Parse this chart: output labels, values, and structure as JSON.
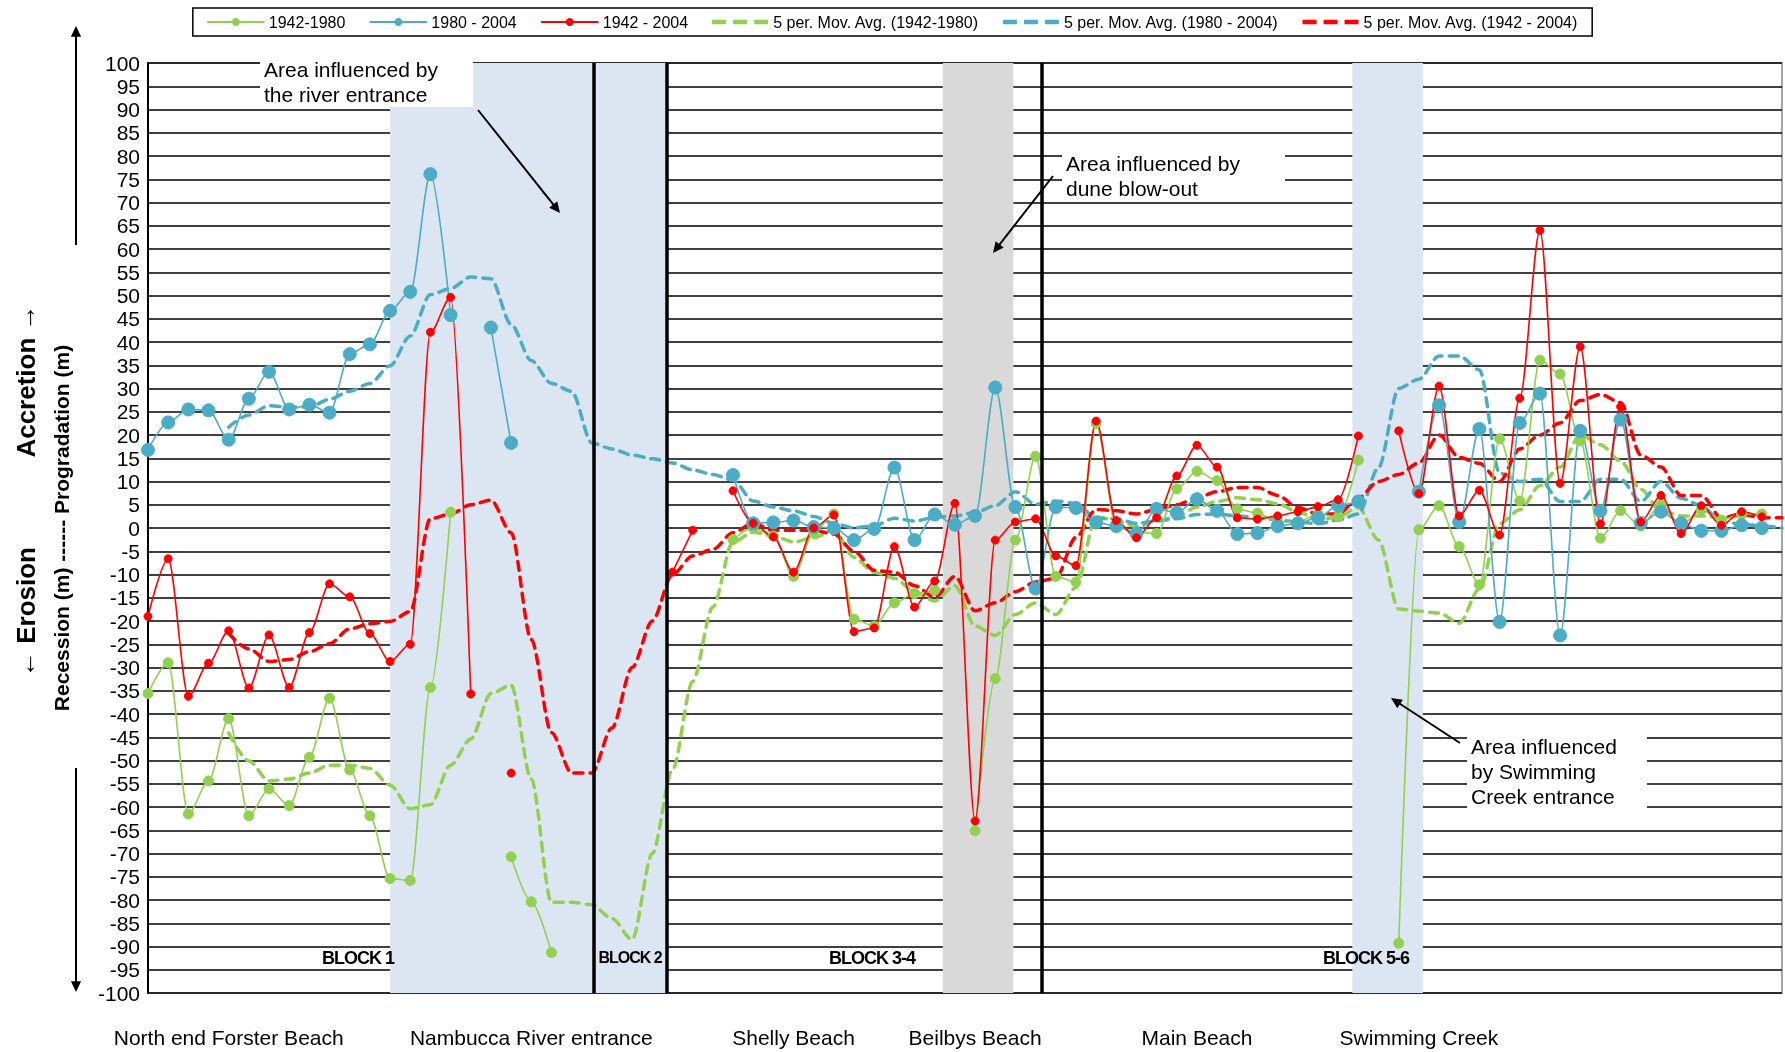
{
  "chart_data": {
    "type": "line",
    "ylabel": "Recession (m) ------ Progradation (m)",
    "categories": [
      null,
      null,
      null,
      null,
      "North end Forster Beach",
      null,
      null,
      null,
      null,
      null,
      null,
      null,
      null,
      null,
      null,
      null,
      null,
      null,
      null,
      "Nambucca River entrance",
      null,
      null,
      null,
      null,
      null,
      null,
      null,
      null,
      null,
      null,
      null,
      null,
      "Shelly Beach",
      null,
      null,
      null,
      null,
      null,
      null,
      null,
      null,
      "Beilbys Beach",
      null,
      null,
      null,
      null,
      null,
      null,
      null,
      null,
      null,
      null,
      "Main Beach",
      null,
      null,
      null,
      null,
      null,
      null,
      null,
      null,
      null,
      null,
      "Swimming Creek",
      null,
      null,
      null,
      null,
      null,
      null,
      null,
      null,
      null,
      null,
      null,
      null,
      null,
      null,
      null,
      null,
      null,
      null
    ],
    "ylim": [
      -100,
      100
    ],
    "yticks": [
      -100,
      -95,
      -90,
      -85,
      -80,
      -75,
      -70,
      -65,
      -60,
      -55,
      -50,
      -45,
      -40,
      -35,
      -30,
      -25,
      -20,
      -15,
      -10,
      -5,
      0,
      5,
      10,
      15,
      20,
      25,
      30,
      35,
      40,
      45,
      50,
      55,
      60,
      65,
      70,
      75,
      80,
      85,
      90,
      95,
      100
    ],
    "grid": "y",
    "legend": "top",
    "series": [
      {
        "name": "1942-1980",
        "color": "#92d050",
        "marker": "circle",
        "line_style": "solid",
        "values": [
          -35.6,
          -29,
          -61.5,
          -54.4,
          -41,
          -61.9,
          -56.1,
          -59.7,
          -49.3,
          -36.6,
          -52,
          -61.9,
          -75.4,
          -75.8,
          -34.3,
          3.4,
          null,
          null,
          -70.7,
          -80.4,
          -91.3,
          null,
          null,
          null,
          null,
          null,
          null,
          null,
          null,
          -2.5,
          0,
          -1.7,
          -10.4,
          -1,
          3,
          -19.6,
          -21.1,
          -16.1,
          -14.1,
          -13.4,
          null,
          -65.1,
          -32.4,
          -2.6,
          15.4,
          -10.4,
          -11.6,
          22.5,
          0.4,
          -0.9,
          -1.2,
          8.4,
          12.2,
          10.2,
          4.1,
          3.2,
          1.3,
          1.3,
          3,
          2.4,
          14.6,
          null,
          -89.3,
          -0.4,
          4.8,
          -4,
          -12.2,
          19.2,
          5.8,
          36.1,
          33.1,
          18.7,
          -2.2,
          3.7,
          0.4,
          5,
          0.6,
          3.9,
          1.7,
          3,
          3,
          null
        ]
      },
      {
        "name": "1980 - 2004",
        "color": "#4bacc6",
        "marker": "circle",
        "line_style": "solid",
        "values": [
          16.8,
          22.7,
          25.5,
          25.3,
          19,
          27.8,
          33.6,
          25.5,
          26.5,
          24.8,
          37.4,
          39.5,
          46.7,
          50.8,
          76.1,
          45.8,
          null,
          43.1,
          18.3,
          null,
          null,
          null,
          null,
          null,
          null,
          null,
          null,
          null,
          null,
          11.4,
          1,
          1.2,
          1.6,
          0.2,
          0,
          -2.6,
          -0.2,
          13,
          -2.6,
          2.9,
          0.7,
          2.6,
          30.2,
          4.5,
          -13,
          4.5,
          4.3,
          1.2,
          0.4,
          -1.2,
          4.1,
          3.3,
          6.2,
          3.7,
          -1.3,
          -1.1,
          0.4,
          1,
          2.2,
          4.8,
          5.7,
          null,
          null,
          7.8,
          26.4,
          1.3,
          21.3,
          -20.2,
          22.6,
          28.9,
          -23.1,
          20.9,
          3.7,
          23.3,
          1.1,
          3.5,
          1,
          -0.6,
          -0.6,
          0.6,
          0,
          null
        ]
      },
      {
        "name": "1942 - 2004",
        "color": "#ff0000",
        "marker": "circle",
        "line_style": "solid",
        "values": [
          -19,
          -6.6,
          -36.2,
          -29.1,
          -22.1,
          -34.4,
          -23,
          -34.3,
          -22.5,
          -12,
          -14.8,
          -22.7,
          -28.7,
          -25,
          42.1,
          49.6,
          -35.7,
          null,
          -52.7,
          null,
          null,
          null,
          null,
          null,
          null,
          null,
          -9.5,
          -0.5,
          null,
          8,
          1,
          -1.9,
          -9.5,
          0,
          2.8,
          -22.3,
          -21.5,
          -4,
          -17,
          -11.4,
          5.3,
          -63,
          -2.6,
          1.3,
          2,
          -6,
          -8.1,
          23,
          1.6,
          -2.1,
          2.2,
          11.2,
          17.8,
          13.1,
          2.2,
          1.9,
          2.6,
          3.5,
          4.6,
          6.1,
          19.8,
          null,
          20.9,
          7.4,
          30.5,
          2.6,
          8.1,
          -1.5,
          27.9,
          64,
          9.6,
          39,
          0.9,
          26.1,
          1.3,
          7,
          -1.2,
          4.8,
          0.6,
          3.5,
          2.4,
          null
        ]
      },
      {
        "name": "5 per. Mov. Avg. (1942-1980)",
        "color": "#92d050",
        "marker": "none",
        "line_style": "dashed",
        "values": [
          null,
          null,
          null,
          null,
          -44.1,
          -50.1,
          -54.4,
          -54,
          -52.7,
          -51,
          -51,
          -51.7,
          -55.3,
          -60.4,
          -59.5,
          -51,
          -45.4,
          -35.6,
          -33.8,
          -54,
          -80.5,
          -80.5,
          -81,
          -84,
          -88.5,
          -70,
          -52,
          -33,
          -17,
          -3,
          -0.9,
          -1.7,
          -3,
          -2.1,
          -0.5,
          -6.3,
          -9.5,
          -10.8,
          -13.7,
          -15.7,
          -12.4,
          -21.1,
          -23.1,
          -18.6,
          -16.1,
          -18.6,
          -12.8,
          2.4,
          1.6,
          0.3,
          1.6,
          2.4,
          4.5,
          5.7,
          6.5,
          6.1,
          5.2,
          3.5,
          1.7,
          2.4,
          4.4,
          -2.6,
          -17.4,
          -17.9,
          -18.3,
          -20.5,
          -13.1,
          0.9,
          3.9,
          9.1,
          13.1,
          20,
          17.9,
          14.4,
          8.3,
          3.7,
          2.6,
          2.6,
          2.2,
          2.6,
          2.6,
          null
        ]
      },
      {
        "name": "5 per. Mov. Avg. (1980 - 2004)",
        "color": "#4bacc6",
        "marker": "none",
        "line_style": "dashed",
        "values": [
          null,
          null,
          null,
          null,
          21.7,
          24.3,
          26.3,
          26,
          26,
          27.7,
          29.4,
          31.1,
          34.9,
          41.3,
          50.2,
          51.5,
          54,
          53.6,
          43.8,
          36,
          31.1,
          29.4,
          18.3,
          17,
          15.7,
          14.9,
          14,
          12.5,
          11.5,
          10.3,
          5.8,
          4.5,
          3.7,
          2.5,
          1,
          0,
          0.5,
          2.1,
          1.5,
          2.3,
          2.6,
          3.3,
          4.8,
          7.8,
          5.1,
          5.8,
          5.3,
          2.1,
          2,
          1,
          1.5,
          2,
          2.9,
          3,
          2.6,
          2.2,
          1.7,
          1.3,
          0.9,
          1.7,
          3,
          13,
          30,
          32,
          37,
          37,
          34,
          11.8,
          10,
          10.5,
          5.7,
          5.7,
          10.5,
          10.5,
          5.7,
          10,
          6.4,
          4.8,
          1.3,
          0.9,
          0.4,
          0
        ]
      },
      {
        "name": "5 per. Mov. Avg. (1942 - 2004)",
        "color": "#ff0000",
        "marker": "none",
        "line_style": "dashed",
        "values": [
          null,
          null,
          null,
          null,
          -22.7,
          -26,
          -28.7,
          -28.3,
          -26.6,
          -24.9,
          -21.7,
          -20.6,
          -20.1,
          -18,
          2,
          3,
          5,
          6,
          -1,
          -24,
          -44,
          -52.7,
          -52.7,
          -43,
          -30,
          -20,
          -10,
          -6,
          -4.6,
          -1,
          1,
          -0.5,
          -0.5,
          -0.5,
          -1.3,
          -5,
          -9.1,
          -9.5,
          -12.4,
          -14.9,
          -10.4,
          -17.8,
          -16.1,
          -13.7,
          -11.6,
          -10.8,
          -2,
          4,
          3.7,
          3,
          4,
          5,
          6.5,
          7.8,
          8.7,
          8.7,
          7,
          4.4,
          3,
          3,
          6.5,
          10,
          11.5,
          14,
          20,
          15.2,
          13.9,
          10,
          17,
          20,
          22.6,
          27.4,
          28.7,
          27,
          15.7,
          13.1,
          7,
          7,
          2.2,
          3,
          2.2,
          2.2
        ]
      }
    ],
    "annotations": [
      "Area influenced by the river entrance",
      "Area influenced by dune blow-out",
      "Area influenced by Swimming Creek entrance",
      "BLOCK 1",
      "BLOCK 2",
      "BLOCK 3-4",
      "BLOCK 5-6",
      "← Erosion",
      "Accretion →"
    ]
  }
}
